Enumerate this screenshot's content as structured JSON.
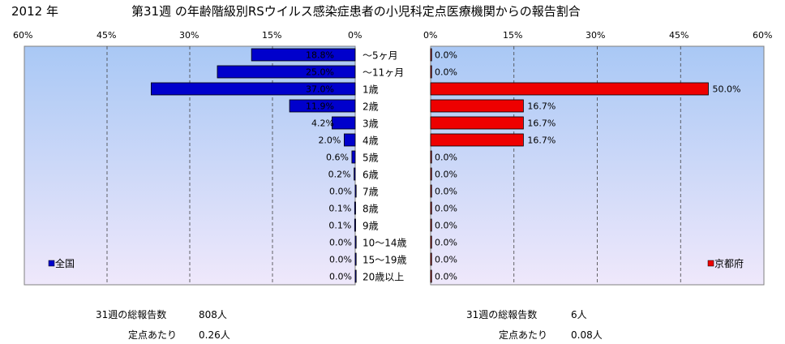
{
  "header": {
    "year": "2012 年",
    "title": "第31週 の年齢階級別RSウイルス感染症患者の小児科定点医療機関からの報告割合"
  },
  "chart_data": [
    {
      "type": "bar",
      "orientation": "horizontal",
      "direction": "right-to-left",
      "categories": [
        "～5ヶ月",
        "～11ヶ月",
        "1歳",
        "2歳",
        "3歳",
        "4歳",
        "5歳",
        "6歳",
        "7歳",
        "8歳",
        "9歳",
        "10～14歳",
        "15～19歳",
        "20歳以上"
      ],
      "series": [
        {
          "name": "全国",
          "values": [
            18.8,
            25.0,
            37.0,
            11.9,
            4.2,
            2.0,
            0.6,
            0.2,
            0.0,
            0.1,
            0.1,
            0.0,
            0.0,
            0.0
          ],
          "labels": [
            "18.8%",
            "25.0%",
            "37.0%",
            "11.9%",
            "4.2%",
            "2.0%",
            "0.6%",
            "0.2%",
            "0.0%",
            "0.1%",
            "0.1%",
            "0.0%",
            "0.0%",
            "0.0%"
          ],
          "color": "#0000cc"
        }
      ],
      "xlim": [
        0,
        60
      ],
      "ticks": [
        "60%",
        "45%",
        "30%",
        "15%",
        "0%"
      ],
      "grid": true,
      "legend_position": "bottom-left",
      "stats": {
        "reports_label": "31週の総報告数",
        "reports_value": "808人",
        "per_site_label": "定点あたり",
        "per_site_value": "0.26人"
      }
    },
    {
      "type": "bar",
      "orientation": "horizontal",
      "direction": "left-to-right",
      "categories": [
        "～5ヶ月",
        "～11ヶ月",
        "1歳",
        "2歳",
        "3歳",
        "4歳",
        "5歳",
        "6歳",
        "7歳",
        "8歳",
        "9歳",
        "10～14歳",
        "15～19歳",
        "20歳以上"
      ],
      "series": [
        {
          "name": "京都府",
          "values": [
            0.0,
            0.0,
            50.0,
            16.7,
            16.7,
            16.7,
            0.0,
            0.0,
            0.0,
            0.0,
            0.0,
            0.0,
            0.0,
            0.0
          ],
          "labels": [
            "0.0%",
            "0.0%",
            "50.0%",
            "16.7%",
            "16.7%",
            "16.7%",
            "0.0%",
            "0.0%",
            "0.0%",
            "0.0%",
            "0.0%",
            "0.0%",
            "0.0%",
            "0.0%"
          ],
          "color": "#ee0000"
        }
      ],
      "xlim": [
        0,
        60
      ],
      "ticks": [
        "0%",
        "15%",
        "30%",
        "45%",
        "60%"
      ],
      "grid": true,
      "legend_position": "bottom-right",
      "stats": {
        "reports_label": "31週の総報告数",
        "reports_value": "6人",
        "per_site_label": "定点あたり",
        "per_site_value": "0.08人"
      }
    }
  ]
}
